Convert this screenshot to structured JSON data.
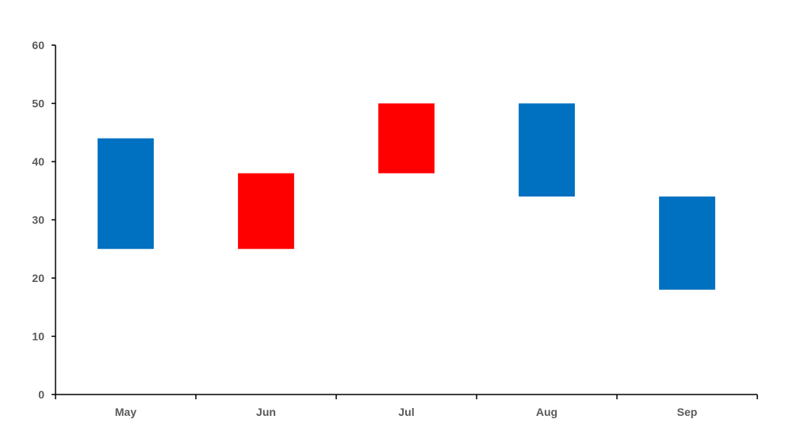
{
  "chart_data": {
    "type": "bar",
    "subtype": "floating-range",
    "title": "",
    "xlabel": "",
    "ylabel": "",
    "ylim": [
      0,
      60
    ],
    "yticks": [
      0,
      10,
      20,
      30,
      40,
      50,
      60
    ],
    "grid": false,
    "legend": "none",
    "categories": [
      "May",
      "Jun",
      "Jul",
      "Aug",
      "Sep"
    ],
    "ranges": [
      {
        "low": 25,
        "high": 44,
        "color": "#0070c0"
      },
      {
        "low": 25,
        "high": 38,
        "color": "#ff0000"
      },
      {
        "low": 38,
        "high": 50,
        "color": "#ff0000"
      },
      {
        "low": 34,
        "high": 50,
        "color": "#0070c0"
      },
      {
        "low": 18,
        "high": 34,
        "color": "#0070c0"
      }
    ],
    "colors": {
      "increase": "#ff0000",
      "decrease": "#0070c0",
      "axis": "#000000",
      "tick_text": "#595959"
    }
  }
}
